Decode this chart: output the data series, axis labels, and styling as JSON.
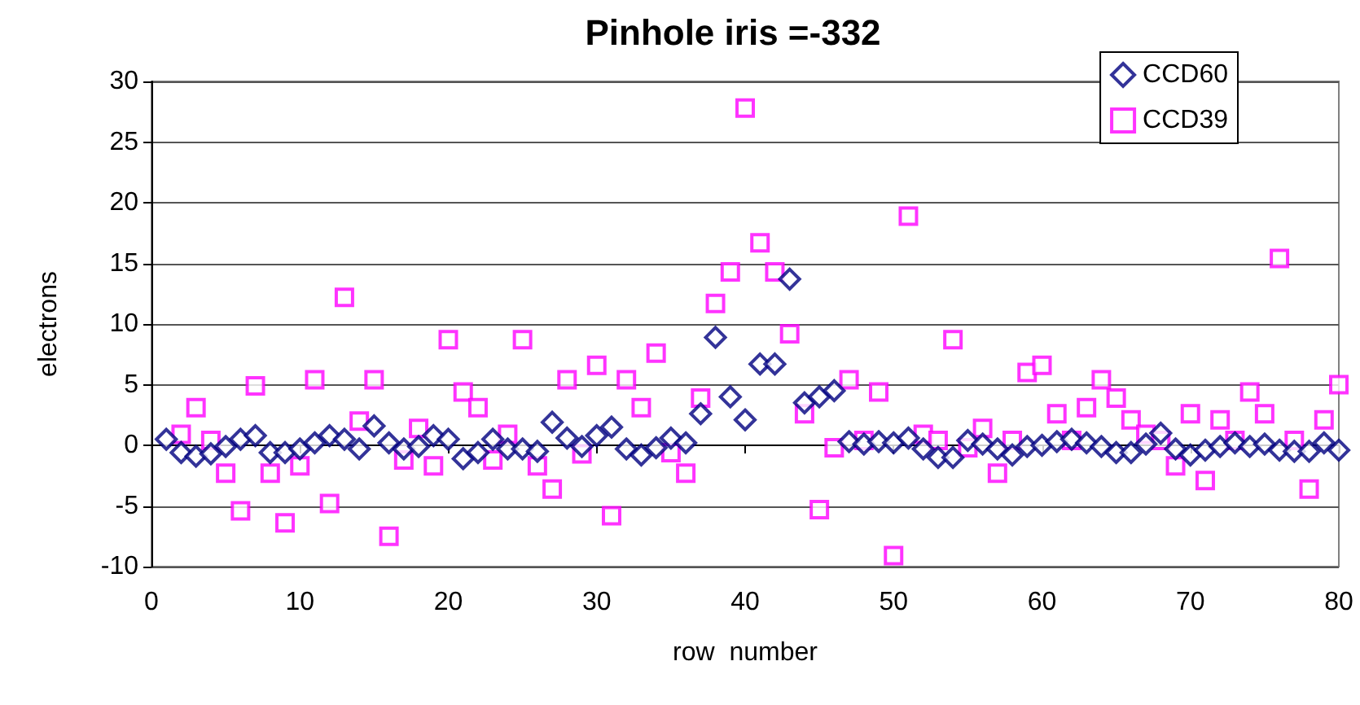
{
  "chart_data": {
    "type": "scatter",
    "title": "Pinhole iris =-332",
    "xlabel": "row  number",
    "ylabel": "electrons",
    "x": [
      1,
      2,
      3,
      4,
      5,
      6,
      7,
      8,
      9,
      10,
      11,
      12,
      13,
      14,
      15,
      16,
      17,
      18,
      19,
      20,
      21,
      22,
      23,
      24,
      25,
      26,
      27,
      28,
      29,
      30,
      31,
      32,
      33,
      34,
      35,
      36,
      37,
      38,
      39,
      40,
      41,
      42,
      43,
      44,
      45,
      46,
      47,
      48,
      49,
      50,
      51,
      52,
      53,
      54,
      55,
      56,
      57,
      58,
      59,
      60,
      61,
      62,
      63,
      64,
      65,
      66,
      67,
      68,
      69,
      70,
      71,
      72,
      73,
      74,
      75,
      76,
      77,
      78,
      79,
      80
    ],
    "series": [
      {
        "name": "CCD60",
        "color": "#000080",
        "marker": "diamond",
        "values": [
          0.5,
          -0.6,
          -0.9,
          -0.7,
          -0.1,
          0.5,
          0.8,
          -0.6,
          -0.6,
          -0.3,
          0.2,
          0.8,
          0.5,
          -0.3,
          1.6,
          0.2,
          -0.3,
          -0.1,
          0.8,
          0.5,
          -1.1,
          -0.6,
          0.5,
          -0.3,
          -0.3,
          -0.5,
          1.9,
          0.6,
          -0.1,
          0.8,
          1.5,
          -0.3,
          -0.8,
          -0.2,
          0.6,
          0.2,
          2.6,
          8.9,
          4.0,
          2.1,
          6.7,
          6.7,
          13.7,
          3.5,
          4.0,
          4.5,
          0.3,
          0.1,
          0.3,
          0.2,
          0.6,
          -0.3,
          -1.0,
          -1.0,
          0.4,
          0.1,
          -0.3,
          -0.8,
          -0.1,
          0.0,
          0.3,
          0.5,
          0.2,
          -0.1,
          -0.6,
          -0.6,
          0.1,
          1.0,
          -0.3,
          -0.8,
          -0.4,
          -0.1,
          0.2,
          -0.1,
          0.1,
          -0.4,
          -0.5,
          -0.5,
          0.2,
          -0.4
        ]
      },
      {
        "name": "CCD39",
        "color": "#ff00ff",
        "marker": "square",
        "values": [
          null,
          0.9,
          3.1,
          0.4,
          -2.3,
          -5.4,
          4.9,
          -2.3,
          -6.4,
          -1.7,
          5.4,
          -4.8,
          12.2,
          2.0,
          5.4,
          -7.5,
          -1.2,
          1.4,
          -1.7,
          8.7,
          4.4,
          3.1,
          -1.2,
          0.9,
          8.7,
          -1.7,
          -3.6,
          5.4,
          -0.7,
          6.6,
          -5.8,
          5.4,
          3.1,
          7.6,
          -0.6,
          -2.3,
          3.9,
          11.7,
          14.3,
          27.8,
          16.7,
          14.3,
          9.2,
          2.6,
          -5.3,
          -0.2,
          5.4,
          0.4,
          4.4,
          -9.1,
          18.9,
          0.9,
          0.4,
          8.7,
          -0.2,
          1.4,
          -2.3,
          0.4,
          6.0,
          6.6,
          2.6,
          0.4,
          3.1,
          5.4,
          3.9,
          2.1,
          0.9,
          0.4,
          -1.7,
          2.6,
          -2.9,
          2.1,
          0.4,
          4.4,
          2.6,
          15.4,
          0.4,
          -3.6,
          2.1,
          5.0
        ]
      }
    ],
    "xlim": [
      0,
      80
    ],
    "xticks": [
      0,
      10,
      20,
      30,
      40,
      50,
      60,
      70,
      80
    ],
    "ylim": [
      -10,
      30
    ],
    "yticks": [
      -10,
      -5,
      0,
      5,
      10,
      15,
      20,
      25,
      30
    ],
    "grid": "y",
    "legend": "top right"
  }
}
